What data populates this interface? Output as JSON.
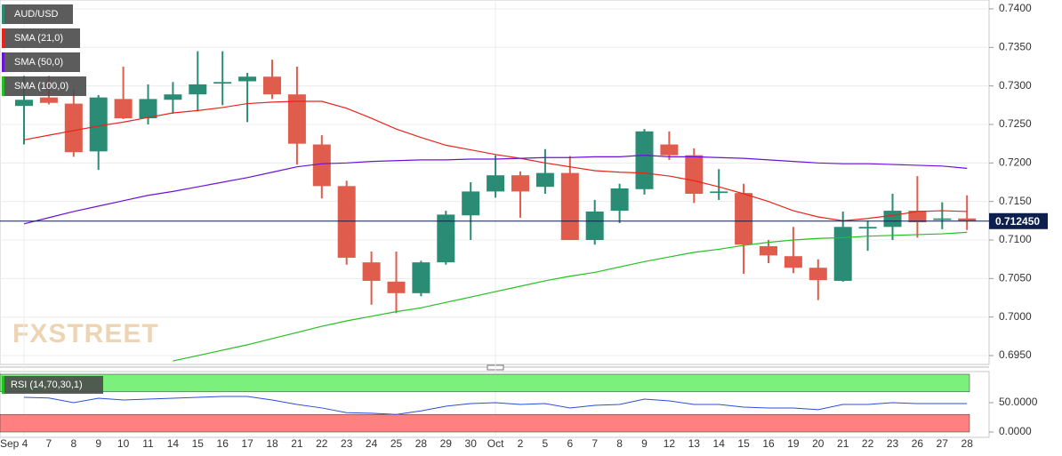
{
  "chart_data": [
    {
      "type": "candlestick",
      "name": "AUD/USD",
      "watermark": "FXSTREET",
      "categories": [
        "Sep 4",
        "7",
        "8",
        "9",
        "10",
        "11",
        "14",
        "15",
        "16",
        "17",
        "18",
        "21",
        "22",
        "23",
        "24",
        "25",
        "28",
        "29",
        "30",
        "Oct",
        "2",
        "5",
        "6",
        "7",
        "8",
        "9",
        "12",
        "13",
        "14",
        "15",
        "16",
        "19",
        "20",
        "21",
        "22",
        "23",
        "26",
        "27",
        "28"
      ],
      "open": [
        0.7274,
        0.7285,
        0.7277,
        0.7215,
        0.7283,
        0.7258,
        0.7282,
        0.7289,
        0.7303,
        0.7306,
        0.7312,
        0.7289,
        0.7224,
        0.717,
        0.7071,
        0.7046,
        0.7031,
        0.7071,
        0.7132,
        0.7163,
        0.7184,
        0.7169,
        0.7187,
        0.71,
        0.7138,
        0.7166,
        0.7224,
        0.721,
        0.7161,
        0.7161,
        0.7092,
        0.7079,
        0.7064,
        0.7047,
        0.7115,
        0.7117,
        0.7138,
        0.7126,
        0.7128
      ],
      "high": [
        0.7313,
        0.7313,
        0.7296,
        0.7288,
        0.7325,
        0.7302,
        0.7305,
        0.7345,
        0.7345,
        0.7317,
        0.7334,
        0.7325,
        0.7236,
        0.7177,
        0.7085,
        0.7085,
        0.7073,
        0.7138,
        0.7175,
        0.721,
        0.7189,
        0.7218,
        0.7209,
        0.7152,
        0.7173,
        0.7244,
        0.7241,
        0.7219,
        0.7192,
        0.7173,
        0.71,
        0.7117,
        0.7075,
        0.7137,
        0.7125,
        0.716,
        0.7183,
        0.7149,
        0.7158
      ],
      "low": [
        0.7224,
        0.7276,
        0.7208,
        0.7191,
        0.7257,
        0.725,
        0.7264,
        0.7267,
        0.7275,
        0.7253,
        0.7283,
        0.7198,
        0.7154,
        0.7068,
        0.7016,
        0.7005,
        0.7027,
        0.7068,
        0.71,
        0.7155,
        0.7129,
        0.716,
        0.71,
        0.7094,
        0.7122,
        0.7159,
        0.7204,
        0.7148,
        0.7152,
        0.7056,
        0.707,
        0.7057,
        0.7022,
        0.7046,
        0.7086,
        0.71,
        0.7103,
        0.7114,
        0.7113
      ],
      "close": [
        0.7282,
        0.7278,
        0.7214,
        0.7285,
        0.7258,
        0.7283,
        0.7289,
        0.7302,
        0.7305,
        0.7312,
        0.7289,
        0.7225,
        0.717,
        0.7077,
        0.7047,
        0.7031,
        0.7071,
        0.7133,
        0.7163,
        0.7184,
        0.7163,
        0.7187,
        0.71,
        0.7137,
        0.7167,
        0.7241,
        0.721,
        0.716,
        0.7163,
        0.7094,
        0.708,
        0.7064,
        0.7048,
        0.7117,
        0.7117,
        0.7138,
        0.7123,
        0.7128,
        0.71245
      ],
      "up_color": "#2a8c74",
      "down_color": "#e05c4c",
      "series": [
        {
          "name": "SMA (21,0)",
          "color": "#e8251c",
          "values": [
            0.723,
            0.7236,
            0.7242,
            0.7248,
            0.7253,
            0.7259,
            0.7265,
            0.7268,
            0.7272,
            0.7277,
            0.7279,
            0.728,
            0.728,
            0.7271,
            0.7258,
            0.7244,
            0.7233,
            0.7223,
            0.7217,
            0.7211,
            0.7206,
            0.72,
            0.7195,
            0.719,
            0.7188,
            0.7187,
            0.7183,
            0.7177,
            0.7169,
            0.716,
            0.715,
            0.7138,
            0.713,
            0.7125,
            0.7128,
            0.7132,
            0.7137,
            0.7138,
            0.7137
          ]
        },
        {
          "name": "SMA (50,0)",
          "color": "#6a12d8",
          "values": [
            0.7121,
            0.7129,
            0.7137,
            0.7144,
            0.7151,
            0.7158,
            0.7163,
            0.7169,
            0.7175,
            0.7181,
            0.7188,
            0.7195,
            0.7199,
            0.72,
            0.7202,
            0.7203,
            0.7204,
            0.7204,
            0.7205,
            0.7205,
            0.7206,
            0.7207,
            0.7207,
            0.7208,
            0.7208,
            0.721,
            0.7208,
            0.7208,
            0.7207,
            0.7206,
            0.7204,
            0.7202,
            0.72,
            0.7199,
            0.7199,
            0.7198,
            0.7197,
            0.7196,
            0.7193
          ]
        },
        {
          "name": "SMA (100,0)",
          "color": "#22c022",
          "values": [
            null,
            null,
            null,
            null,
            null,
            null,
            0.6943,
            0.695,
            0.6957,
            0.6964,
            0.6972,
            0.698,
            0.6988,
            0.6995,
            0.7001,
            0.7007,
            0.7012,
            0.7019,
            0.7026,
            0.7033,
            0.704,
            0.7047,
            0.7053,
            0.7058,
            0.7065,
            0.7072,
            0.7078,
            0.7084,
            0.7088,
            0.7093,
            0.7097,
            0.71,
            0.7102,
            0.7103,
            0.7105,
            0.7106,
            0.7107,
            0.7108,
            0.711
          ]
        }
      ],
      "last_price": {
        "value": 0.71245,
        "label": "0.712450"
      },
      "ylim": [
        0.69385,
        0.74115
      ],
      "yticks": [
        {
          "value": 0.695,
          "label": "0.6950"
        },
        {
          "value": 0.7,
          "label": "0.7000"
        },
        {
          "value": 0.705,
          "label": "0.7050"
        },
        {
          "value": 0.71,
          "label": "0.7100"
        },
        {
          "value": 0.715,
          "label": "0.7150"
        },
        {
          "value": 0.72,
          "label": "0.7200"
        },
        {
          "value": 0.725,
          "label": "0.7250"
        },
        {
          "value": 0.73,
          "label": "0.7300"
        },
        {
          "value": 0.735,
          "label": "0.7350"
        },
        {
          "value": 0.74,
          "label": "0.7400"
        }
      ],
      "grid": true
    },
    {
      "type": "line",
      "name": "RSI (14,70,30,1)",
      "overbought": 70,
      "oversold": 30,
      "series": [
        {
          "color": "#2a4fd6",
          "values": [
            59,
            58,
            50,
            57.6,
            54.5,
            56,
            57.6,
            59,
            60.6,
            60.6,
            54.5,
            47,
            41,
            33,
            32,
            30,
            36,
            44,
            48.5,
            50,
            47,
            48.5,
            41,
            45.5,
            47,
            56,
            53,
            47,
            47,
            42.4,
            41,
            41,
            38,
            47,
            47,
            50,
            48.5,
            48.5,
            48.5
          ]
        }
      ],
      "ylim": [
        0,
        100
      ],
      "yticks": [
        {
          "value": 50,
          "label": "50.0000"
        },
        {
          "value": 0,
          "label": "0.0000"
        }
      ],
      "grid": true
    }
  ]
}
